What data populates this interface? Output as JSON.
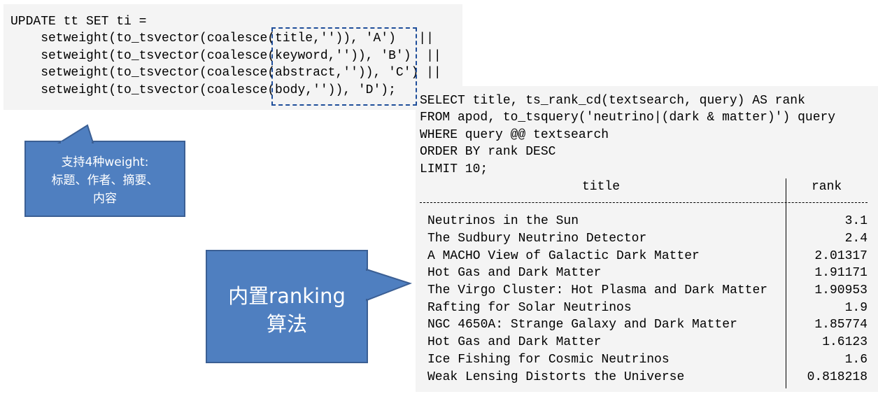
{
  "update_sql": {
    "lines": [
      "UPDATE tt SET ti =",
      "    setweight(to_tsvector(coalesce(title,'')), 'A')   ||",
      "    setweight(to_tsvector(coalesce(keyword,'')), 'B')  ||",
      "    setweight(to_tsvector(coalesce(abstract,'')), 'C') ||",
      "    setweight(to_tsvector(coalesce(body,'')), 'D');"
    ]
  },
  "select_sql": {
    "lines": [
      "SELECT title, ts_rank_cd(textsearch, query) AS rank",
      "FROM apod, to_tsquery('neutrino|(dark & matter)') query",
      "WHERE query @@ textsearch",
      "ORDER BY rank DESC",
      "LIMIT 10;"
    ]
  },
  "result_table": {
    "columns": [
      "title",
      "rank"
    ],
    "rows": [
      {
        "title": "Neutrinos in the Sun",
        "rank": "3.1"
      },
      {
        "title": "The Sudbury Neutrino Detector",
        "rank": "2.4"
      },
      {
        "title": "A MACHO View of Galactic Dark Matter",
        "rank": "2.01317"
      },
      {
        "title": "Hot Gas and Dark Matter",
        "rank": "1.91171"
      },
      {
        "title": "The Virgo Cluster: Hot Plasma and Dark Matter",
        "rank": "1.90953"
      },
      {
        "title": "Rafting for Solar Neutrinos",
        "rank": "1.9"
      },
      {
        "title": "NGC 4650A: Strange Galaxy and Dark Matter",
        "rank": "1.85774"
      },
      {
        "title": "Hot Gas and Dark Matter",
        "rank": "1.6123"
      },
      {
        "title": "Ice Fishing for Cosmic Neutrinos",
        "rank": "1.6"
      },
      {
        "title": "Weak Lensing Distorts the Universe",
        "rank": "0.818218"
      }
    ]
  },
  "callouts": {
    "weights": {
      "line1": "支持4种weight:",
      "line2": "标题、作者、摘要、",
      "line3": "内容"
    },
    "ranking": {
      "line1": "内置ranking",
      "line2": "算法"
    }
  },
  "colors": {
    "callout_fill": "#4f7fc0",
    "callout_border": "#3b5f94",
    "highlight_box": "#1f4e9a",
    "panel_bg": "#f4f4f4"
  }
}
